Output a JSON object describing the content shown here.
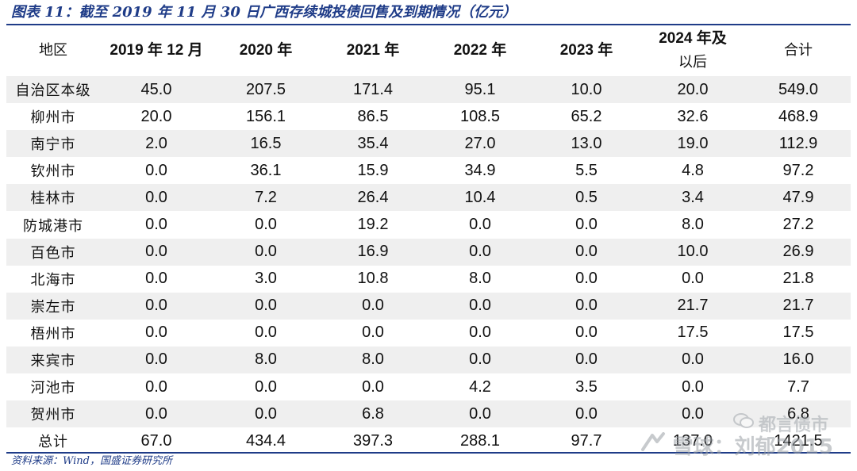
{
  "title": "图表 11：截至 2019 年 11 月 30 日广西存续城投债回售及到期情况（亿元）",
  "header": [
    "地区",
    "2019 年 12 月",
    "2020 年",
    "2021 年",
    "2022 年",
    "2023 年",
    "2024 年及以后",
    "合计"
  ],
  "header_cells": [
    {
      "text": "地区",
      "cn": true
    },
    {
      "text": "2019 年 12 月",
      "cn": false
    },
    {
      "text": "2020 年",
      "cn": false
    },
    {
      "text": "2021 年",
      "cn": false
    },
    {
      "text": "2022 年",
      "cn": false
    },
    {
      "text": "2023 年",
      "cn": false
    },
    {
      "line1": "2024 年及",
      "line2": "以后",
      "cn": false
    },
    {
      "text": "合计",
      "cn": true
    }
  ],
  "rows": [
    [
      "自治区本级",
      "45.0",
      "207.5",
      "171.4",
      "95.1",
      "10.0",
      "20.0",
      "549.0"
    ],
    [
      "柳州市",
      "20.0",
      "156.1",
      "86.5",
      "108.5",
      "65.2",
      "32.6",
      "468.9"
    ],
    [
      "南宁市",
      "2.0",
      "16.5",
      "35.4",
      "27.0",
      "13.0",
      "19.0",
      "112.9"
    ],
    [
      "钦州市",
      "0.0",
      "36.1",
      "15.9",
      "34.9",
      "5.5",
      "4.8",
      "97.2"
    ],
    [
      "桂林市",
      "0.0",
      "7.2",
      "26.4",
      "10.4",
      "0.5",
      "3.4",
      "47.9"
    ],
    [
      "防城港市",
      "0.0",
      "0.0",
      "19.2",
      "0.0",
      "0.0",
      "8.0",
      "27.2"
    ],
    [
      "百色市",
      "0.0",
      "0.0",
      "16.9",
      "0.0",
      "0.0",
      "10.0",
      "26.9"
    ],
    [
      "北海市",
      "0.0",
      "3.0",
      "10.8",
      "8.0",
      "0.0",
      "0.0",
      "21.8"
    ],
    [
      "崇左市",
      "0.0",
      "0.0",
      "0.0",
      "0.0",
      "0.0",
      "21.7",
      "21.7"
    ],
    [
      "梧州市",
      "0.0",
      "0.0",
      "0.0",
      "0.0",
      "0.0",
      "17.5",
      "17.5"
    ],
    [
      "来宾市",
      "0.0",
      "8.0",
      "8.0",
      "0.0",
      "0.0",
      "0.0",
      "16.0"
    ],
    [
      "河池市",
      "0.0",
      "0.0",
      "0.0",
      "4.2",
      "3.5",
      "0.0",
      "7.7"
    ],
    [
      "贺州市",
      "0.0",
      "0.0",
      "6.8",
      "0.0",
      "0.0",
      "0.0",
      "6.8"
    ],
    [
      "总计",
      "67.0",
      "434.4",
      "397.3",
      "288.1",
      "97.7",
      "137.0",
      "1421.5"
    ]
  ],
  "source": "资料来源：Wind，国盛证券研究所",
  "watermark": {
    "line1": "都言债市",
    "line2": "雪球：刘郁2015"
  },
  "colors": {
    "accent": "#1f3c88",
    "stripe": "#efefef"
  }
}
